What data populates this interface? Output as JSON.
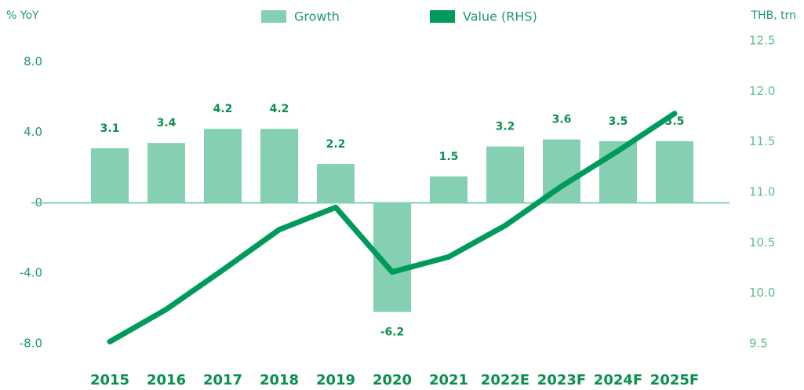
{
  "chart_data": {
    "type": "bar_line",
    "y_label": "% YoY",
    "y2_label": "THB, trn",
    "categories": [
      "2015",
      "2016",
      "2017",
      "2018",
      "2019",
      "2020",
      "2021",
      "2022E",
      "2023F",
      "2024F",
      "2025F"
    ],
    "series": [
      {
        "name": "Growth",
        "color": "#85cfb2",
        "type": "bar",
        "values": [
          3.1,
          3.4,
          4.2,
          4.2,
          2.2,
          -6.2,
          1.5,
          3.2,
          3.6,
          3.5,
          3.5
        ]
      },
      {
        "name": "Value (RHS)",
        "color": "#009a5a",
        "type": "line",
        "axis": "y2",
        "values": [
          9.52,
          9.84,
          10.23,
          10.63,
          10.85,
          10.21,
          10.36,
          10.67,
          11.06,
          11.41,
          11.78
        ]
      }
    ],
    "ylim": [
      -8,
      9.2
    ],
    "yticks": [
      {
        "value": 8,
        "label": "8.0"
      },
      {
        "value": 4,
        "label": "4.0"
      },
      0,
      {
        "value": -4,
        "label": "-4.0"
      },
      {
        "value": -8,
        "label": "-8.0"
      }
    ],
    "y2lim": [
      9.5,
      12.5
    ],
    "y2ticks": [
      12.5,
      {
        "value": 12,
        "label": "12.0"
      },
      11.5,
      {
        "value": 11,
        "label": "11.0"
      },
      10.5,
      {
        "value": 10,
        "label": "10.0"
      },
      9.5
    ],
    "legend": "top"
  }
}
